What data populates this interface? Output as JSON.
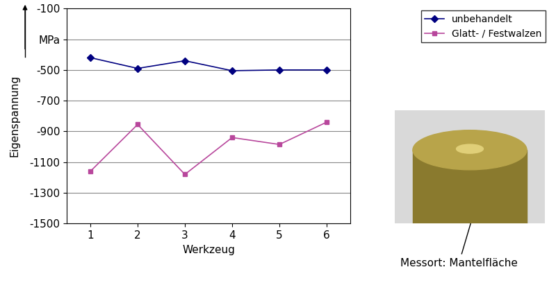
{
  "chart_data": {
    "type": "line",
    "x_label": "Werkzeug",
    "y_label": "Eigenspannung",
    "categories": [
      "1",
      "2",
      "3",
      "4",
      "5",
      "6"
    ],
    "series": [
      {
        "name": "unbehandelt",
        "color": "#000080",
        "marker": "diamond",
        "line_style": "solid",
        "values": [
          -420,
          -490,
          -440,
          -505,
          -500,
          -500
        ]
      },
      {
        "name": "Glatt- / Festwalzen",
        "color": "#b8479c",
        "marker": "square",
        "line_style": "solid",
        "values": [
          -1160,
          -855,
          -1180,
          -940,
          -985,
          -840
        ]
      }
    ],
    "ylim": [
      -1500,
      -100
    ],
    "yticks": [
      -100,
      {
        "value": -300,
        "label": "MPa"
      },
      -500,
      -700,
      -900,
      -1100,
      -1300,
      -1500
    ],
    "grid": true,
    "legend": "upper right",
    "annotations": [
      "Messort: Mantelfläche"
    ]
  }
}
